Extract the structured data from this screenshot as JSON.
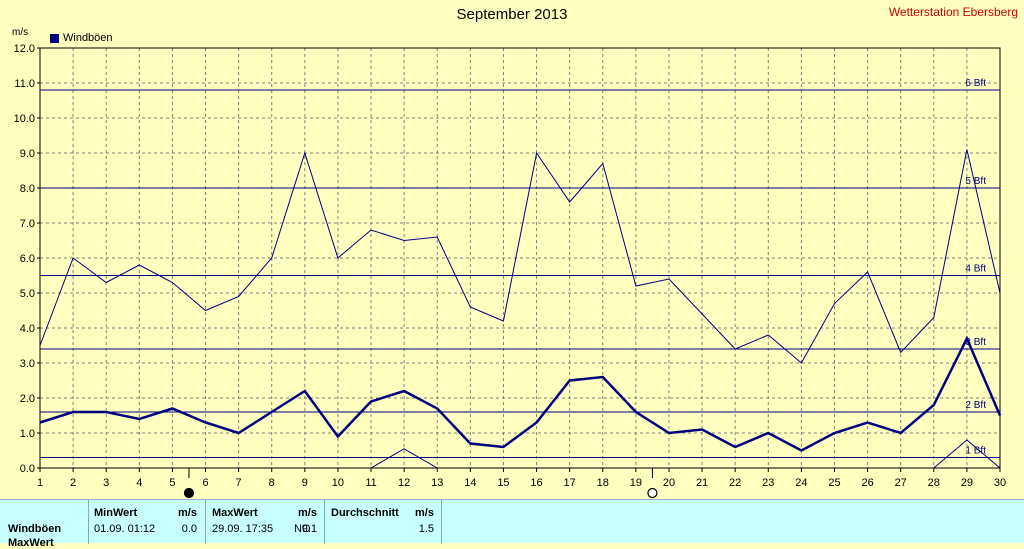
{
  "header": {
    "title": "September 2013",
    "station": "Wetterstation Ebersberg",
    "unit": "m/s",
    "legend_label": "Windböen"
  },
  "colors": {
    "background": "#ffffc0",
    "series": "#000080",
    "grid": "#808080",
    "station_text": "#cc0000",
    "panel": "#c8ffff"
  },
  "chart_data": {
    "type": "line",
    "title": "September 2013",
    "xlabel": "",
    "ylabel": "m/s",
    "xlim": [
      1,
      30
    ],
    "ylim": [
      0,
      12
    ],
    "grid": true,
    "legend_position": "top-left",
    "x": [
      1,
      2,
      3,
      4,
      5,
      6,
      7,
      8,
      9,
      10,
      11,
      12,
      13,
      14,
      15,
      16,
      17,
      18,
      19,
      20,
      21,
      22,
      23,
      24,
      25,
      26,
      27,
      28,
      29,
      30
    ],
    "y_ticks": [
      "0.0",
      "1.0",
      "2.0",
      "3.0",
      "4.0",
      "5.0",
      "6.0",
      "7.0",
      "8.0",
      "9.0",
      "10.0",
      "11.0",
      "12.0"
    ],
    "x_ticks": [
      "1",
      "2",
      "3",
      "4",
      "5",
      "6",
      "7",
      "8",
      "9",
      "10",
      "11",
      "12",
      "13",
      "14",
      "15",
      "16",
      "17",
      "18",
      "19",
      "20",
      "21",
      "22",
      "23",
      "24",
      "25",
      "26",
      "27",
      "28",
      "29",
      "30"
    ],
    "series": [
      {
        "name": "Windböen",
        "values": [
          1.3,
          1.6,
          1.6,
          1.4,
          1.7,
          1.3,
          1.0,
          1.6,
          2.2,
          0.9,
          1.9,
          2.2,
          1.7,
          0.7,
          0.6,
          1.3,
          2.5,
          2.6,
          1.6,
          1.0,
          1.1,
          0.6,
          1.0,
          0.5,
          1.0,
          1.3,
          1.0,
          1.8,
          3.7,
          1.5
        ]
      },
      {
        "values": [
          3.5,
          6.0,
          5.3,
          5.8,
          5.3,
          4.5,
          4.9,
          6.0,
          9.0,
          6.0,
          6.8,
          6.5,
          6.6,
          4.6,
          4.2,
          9.0,
          7.6,
          8.7,
          5.2,
          5.4,
          4.4,
          3.4,
          3.8,
          3.0,
          4.7,
          5.6,
          3.3,
          4.3,
          9.1,
          5.0
        ]
      },
      {
        "values": [
          null,
          null,
          null,
          null,
          null,
          null,
          null,
          null,
          null,
          null,
          0.0,
          0.55,
          0.0,
          null,
          null,
          null,
          null,
          null,
          null,
          null,
          null,
          null,
          null,
          null,
          null,
          null,
          null,
          0.0,
          0.8,
          0.0
        ]
      }
    ],
    "reference_lines": [
      {
        "label": "1 Bft",
        "value": 0.3
      },
      {
        "label": "2 Bft",
        "value": 1.6
      },
      {
        "label": "3 Bft",
        "value": 3.4
      },
      {
        "label": "4 Bft",
        "value": 5.5
      },
      {
        "label": "5 Bft",
        "value": 8.0
      },
      {
        "label": "6 Bft",
        "value": 10.8
      }
    ],
    "moon_markers": [
      {
        "day": 5.5,
        "phase": "new moon"
      },
      {
        "day": 19.5,
        "phase": "full moon"
      }
    ]
  },
  "stats": {
    "row1_label": "Windböen",
    "row2_label": "MaxWert",
    "min": {
      "header": "MinWert",
      "unit": "m/s",
      "date": "01.09.  01:12",
      "value": "0.0"
    },
    "max": {
      "header": "MaxWert",
      "unit": "m/s",
      "date": "29.09.  17:35",
      "dir": "NO",
      "value": "9.1"
    },
    "avg": {
      "header": "Durchschnitt",
      "unit": "m/s",
      "value": "1.5"
    }
  }
}
